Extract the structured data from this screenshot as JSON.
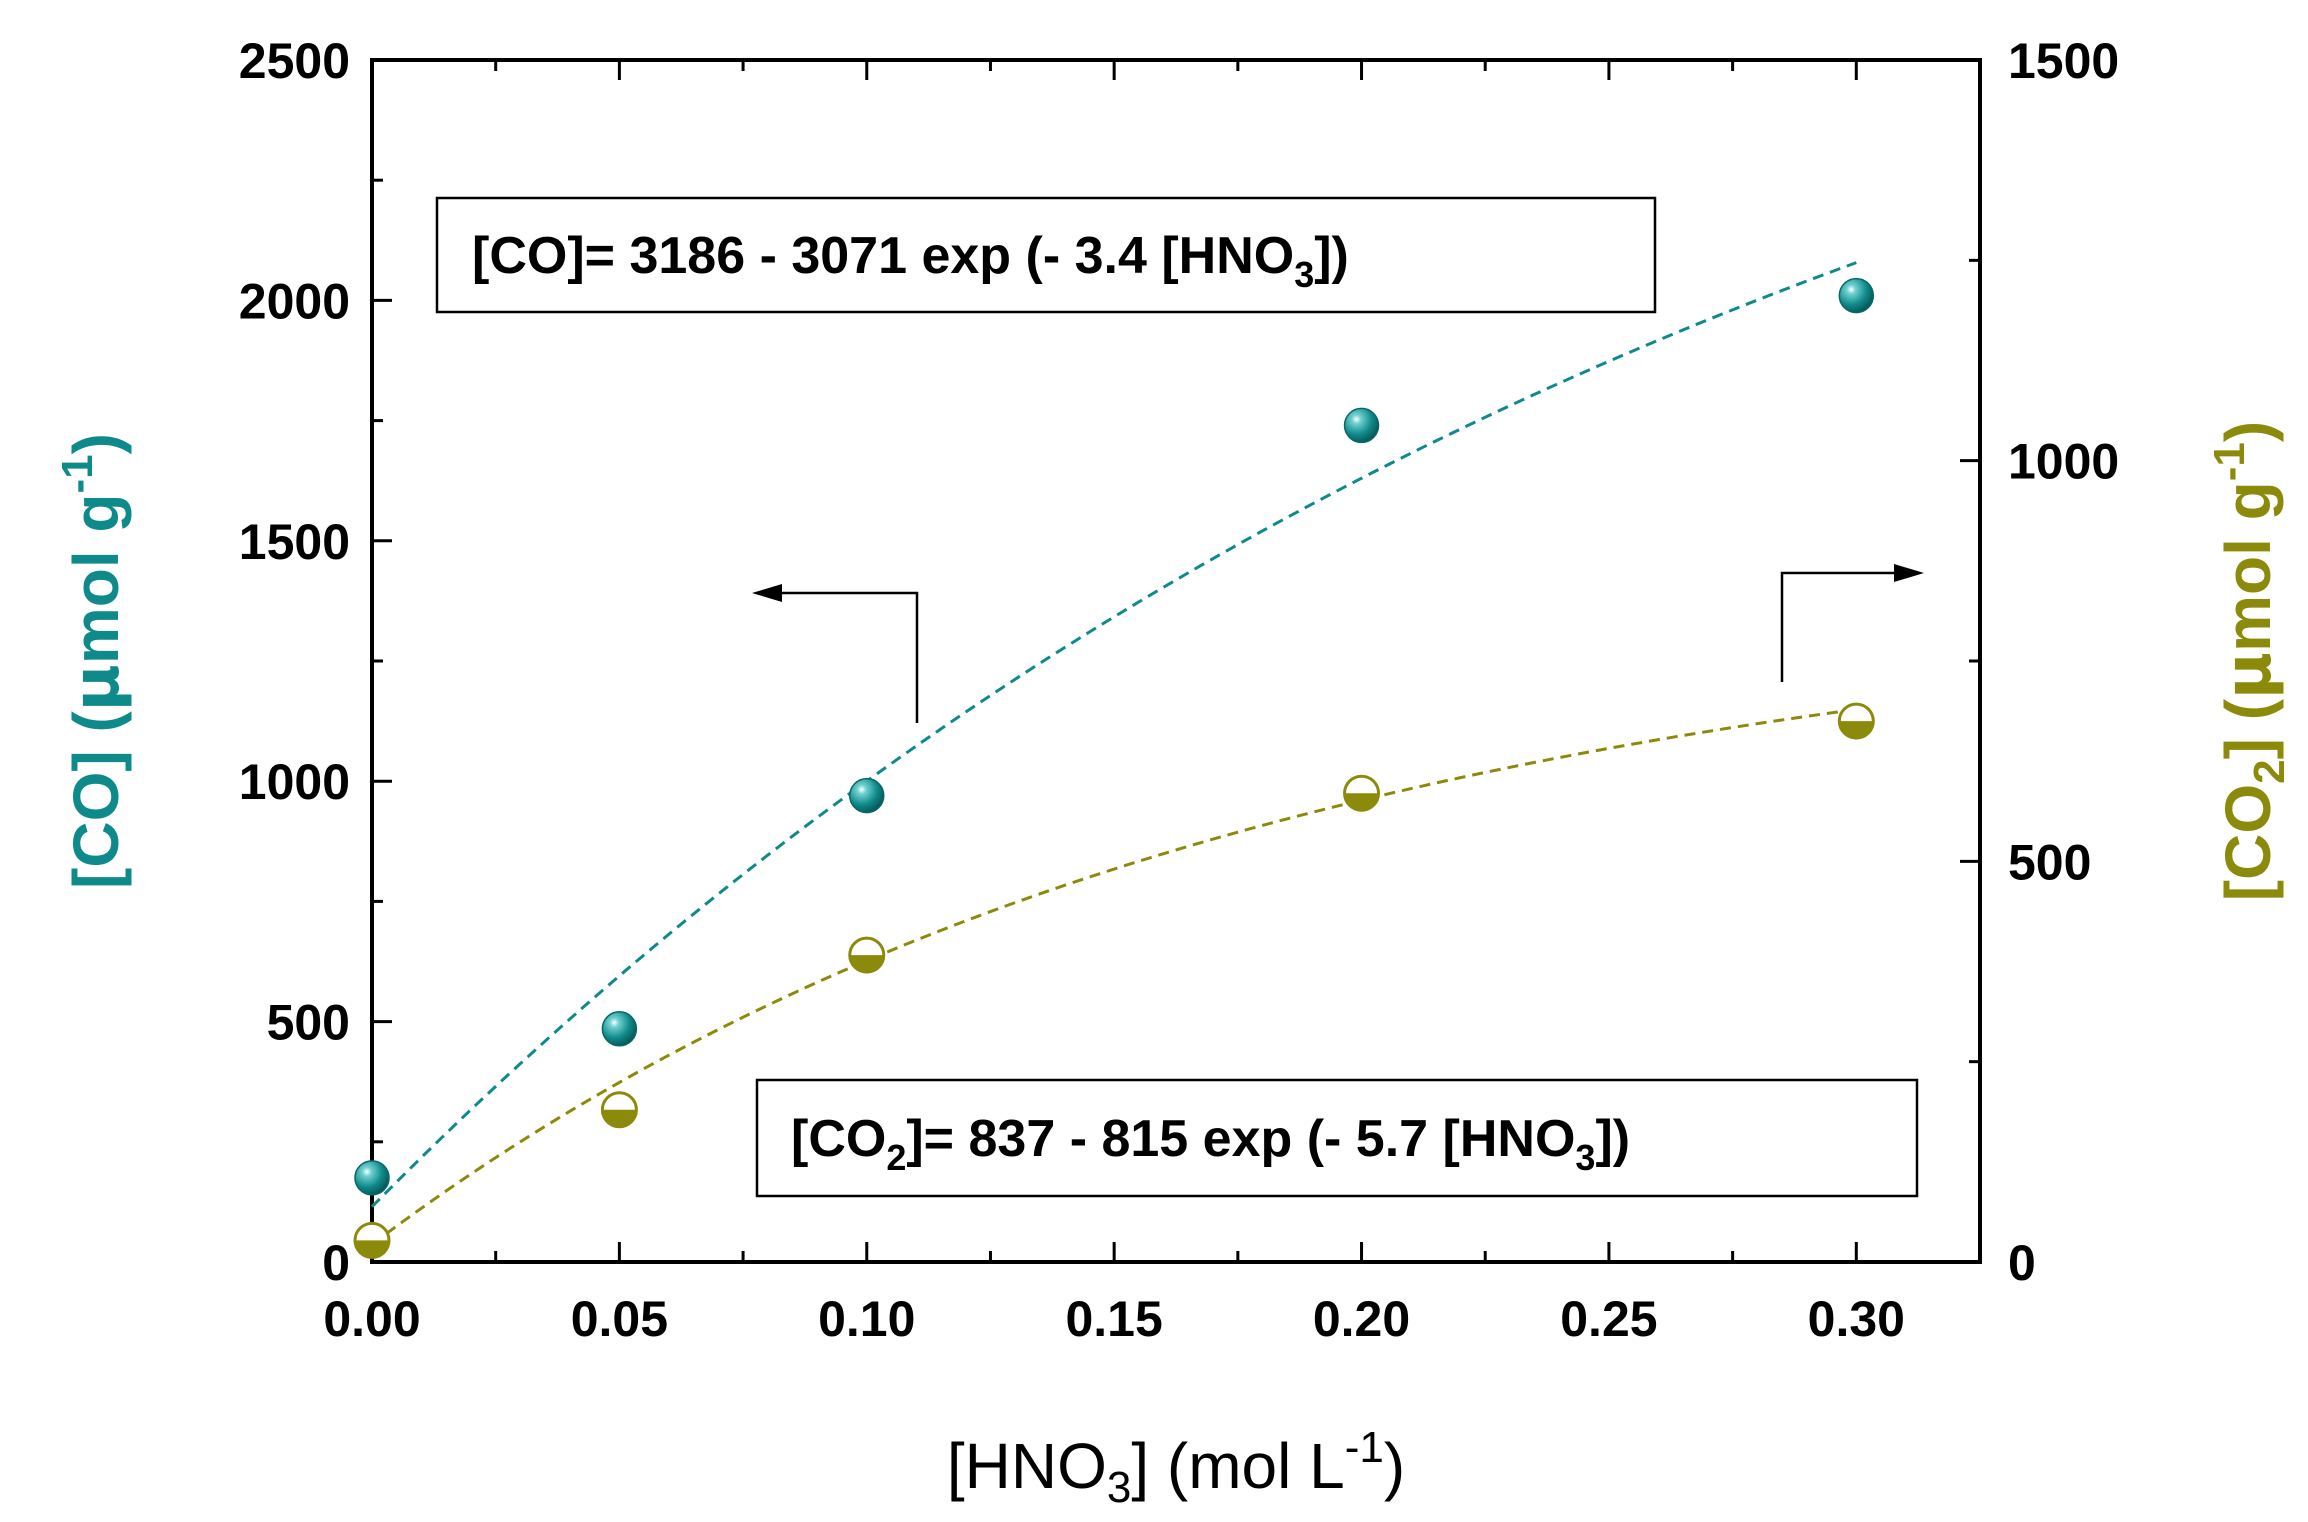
{
  "chart_data": {
    "type": "scatter",
    "x_axis": {
      "label_main": "[HNO",
      "label_sub": "3",
      "label_rest": "] (mol L",
      "label_sup": "-1",
      "label_end": ")",
      "range": [
        0,
        0.325
      ],
      "ticks": [
        0,
        0.05,
        0.1,
        0.15,
        0.2,
        0.25,
        0.3
      ],
      "tick_labels": [
        "0.00",
        "0.05",
        "0.10",
        "0.15",
        "0.20",
        "0.25",
        "0.30"
      ]
    },
    "y_left": {
      "label_main": "[CO] (",
      "label_mu": "µ",
      "label_rest": "mol g",
      "label_sup": "-1",
      "label_end": ")",
      "range": [
        0,
        2500
      ],
      "ticks": [
        0,
        500,
        1000,
        1500,
        2000,
        2500
      ],
      "tick_labels": [
        "0",
        "500",
        "1000",
        "1500",
        "2000",
        "2500"
      ],
      "color": "#0f8a8a"
    },
    "y_right": {
      "label_main": "[CO",
      "label_sub": "2",
      "label_rest": "] (",
      "label_mu": "µ",
      "label_rest2": "mol g",
      "label_sup": "-1",
      "label_end": ")",
      "range": [
        0,
        1500
      ],
      "ticks": [
        0,
        500,
        1000,
        1500
      ],
      "tick_labels": [
        "0",
        "500",
        "1000",
        "1500"
      ],
      "color": "#8c8a0a"
    },
    "series": [
      {
        "name": "CO",
        "axis": "left",
        "color": "#0f8a8a",
        "x": [
          0,
          0.05,
          0.1,
          0.2,
          0.3
        ],
        "y": [
          175,
          485,
          970,
          1740,
          2010
        ]
      },
      {
        "name": "CO2",
        "axis": "right",
        "color": "#8c8a0a",
        "x": [
          0,
          0.05,
          0.1,
          0.2,
          0.3
        ],
        "y": [
          27,
          190,
          383,
          585,
          675
        ]
      }
    ],
    "fits": [
      {
        "name": "CO fit",
        "axis": "left",
        "color": "#0f8a8a",
        "a": 3186,
        "b": 3071,
        "k": 3.4
      },
      {
        "name": "CO2 fit",
        "axis": "right",
        "color": "#8c8a0a",
        "a": 837,
        "b": 815,
        "k": 5.7
      }
    ],
    "annotations": {
      "co_eq_a": "[CO]= 3186 - 3071 exp (- 3.4 [HNO",
      "co_eq_sub": "3",
      "co_eq_b": "])",
      "co2_eq_a": "[CO",
      "co2_eq_sub1": "2",
      "co2_eq_b": "]= 837 - 815 exp (- 5.7 [HNO",
      "co2_eq_sub2": "3",
      "co2_eq_c": "])"
    }
  }
}
